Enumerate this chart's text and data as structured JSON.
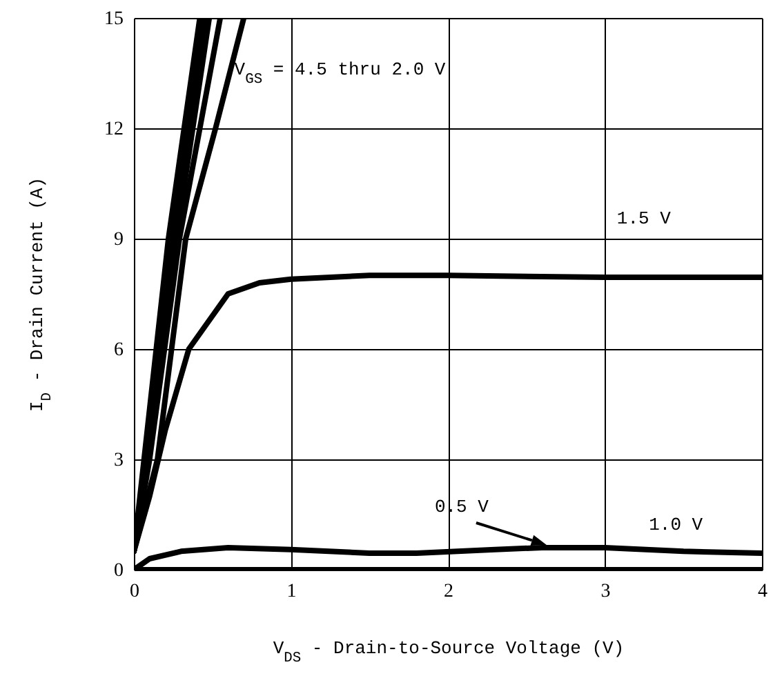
{
  "chart_data": {
    "type": "line",
    "xlabel": "V$_{DS}$ - Drain-to-Source Voltage (V)",
    "ylabel": "I$_{D}$ - Drain Current (A)",
    "xlim": [
      0,
      4
    ],
    "ylim": [
      0,
      15
    ],
    "xticks": [
      0,
      1,
      2,
      3,
      4
    ],
    "yticks": [
      0,
      3,
      6,
      9,
      12,
      15
    ],
    "grid": true,
    "line_style": "solid",
    "series": [
      {
        "color": "#000000",
        "x": [
          0,
          0.22,
          0.42
        ],
        "values": [
          0.5,
          9,
          15
        ]
      },
      {
        "color": "#000000",
        "x": [
          0,
          0.25,
          0.45
        ],
        "values": [
          0.5,
          9,
          15
        ]
      },
      {
        "color": "#000000",
        "x": [
          0,
          0.27,
          0.48
        ],
        "values": [
          0.5,
          9,
          15
        ]
      },
      {
        "color": "#000000",
        "x": [
          0,
          0.1,
          0.29,
          0.55
        ],
        "values": [
          0.5,
          3,
          9,
          15
        ]
      },
      {
        "color": "#000000",
        "x": [
          0,
          0.15,
          0.33,
          0.52,
          0.7
        ],
        "values": [
          0.5,
          3,
          9,
          12,
          15
        ]
      },
      {
        "color": "#000000",
        "x": [
          0,
          0.1,
          0.2,
          0.35,
          0.5,
          0.6,
          0.8,
          1,
          1.5,
          2,
          3,
          4
        ],
        "values": [
          0.5,
          2,
          3.8,
          6,
          6.9,
          7.5,
          7.8,
          7.9,
          8,
          8,
          7.95,
          7.95
        ]
      },
      {
        "color": "#000000",
        "x": [
          0,
          0.1,
          0.3,
          0.6,
          1,
          1.5,
          1.8,
          2.3,
          2.6,
          3,
          3.5,
          4
        ],
        "values": [
          0,
          0.3,
          0.5,
          0.6,
          0.55,
          0.45,
          0.45,
          0.55,
          0.6,
          0.6,
          0.5,
          0.45
        ]
      },
      {
        "color": "#000000",
        "x": [
          0,
          1,
          2,
          3,
          4
        ],
        "values": [
          0,
          0,
          0,
          0,
          0
        ]
      }
    ],
    "annotations": [
      "V$_{GS}$ = 4.5 thru 2.0 V",
      "1.5 V",
      "0.5 V",
      "1.0 V"
    ]
  }
}
